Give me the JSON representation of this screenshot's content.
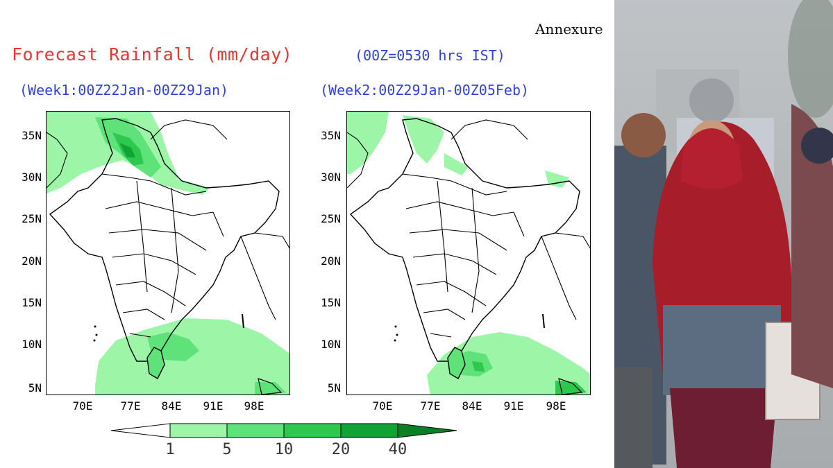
{
  "annexure_label": "Annexure",
  "title": "Forecast Rainfall (mm/day)",
  "time_note": "(00Z=0530 hrs IST)",
  "panels": [
    {
      "label": "(Week1:00Z22Jan-00Z29Jan)"
    },
    {
      "label": "(Week2:00Z29Jan-00Z05Feb)"
    }
  ],
  "lat_labels": [
    "35N",
    "30N",
    "25N",
    "20N",
    "15N",
    "10N",
    "5N"
  ],
  "lon_labels": [
    "70E",
    "77E",
    "84E",
    "91E",
    "98E"
  ],
  "legend": {
    "ticks": [
      "1",
      "5",
      "10",
      "20",
      "40"
    ],
    "colors": [
      "#ffffff",
      "#9df5a8",
      "#5fe27a",
      "#2ec84f",
      "#11a335",
      "#0a7f25"
    ]
  },
  "photo": {
    "description_icon": "people-in-fog-winter-photo"
  }
}
